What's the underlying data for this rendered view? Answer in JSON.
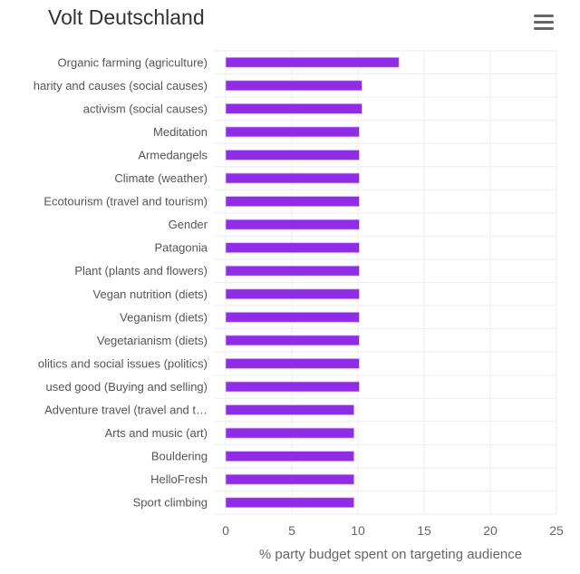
{
  "header": {
    "title": "Volt Deutschland",
    "menu_icon": "hamburger-menu-icon"
  },
  "colors": {
    "bar": "#8f2ce5",
    "grid": "#eeeeee"
  },
  "chart_data": {
    "type": "bar",
    "orientation": "horizontal",
    "title": "Volt Deutschland",
    "xlabel": "% party budget spent on targeting audience",
    "ylabel": "",
    "xlim": [
      0,
      25
    ],
    "xticks": [
      0,
      5,
      10,
      15,
      20,
      25
    ],
    "grid": true,
    "legend": "none",
    "categories": [
      "Organic farming (agriculture)",
      "harity and causes (social causes)",
      "activism (social causes)",
      "Meditation",
      "Armedangels",
      "Climate (weather)",
      "Ecotourism (travel and tourism)",
      "Gender",
      "Patagonia",
      "Plant (plants and flowers)",
      "Vegan nutrition (diets)",
      "Veganism (diets)",
      "Vegetarianism (diets)",
      "olitics and social issues (politics)",
      "used good (Buying and selling)",
      "Adventure travel (travel and t…",
      "Arts and music (art)",
      "Bouldering",
      "HelloFresh",
      "Sport climbing"
    ],
    "values": [
      13.1,
      10.3,
      10.3,
      10.1,
      10.1,
      10.1,
      10.1,
      10.1,
      10.1,
      10.1,
      10.1,
      10.1,
      10.1,
      10.1,
      10.1,
      9.7,
      9.7,
      9.7,
      9.7,
      9.7
    ]
  }
}
